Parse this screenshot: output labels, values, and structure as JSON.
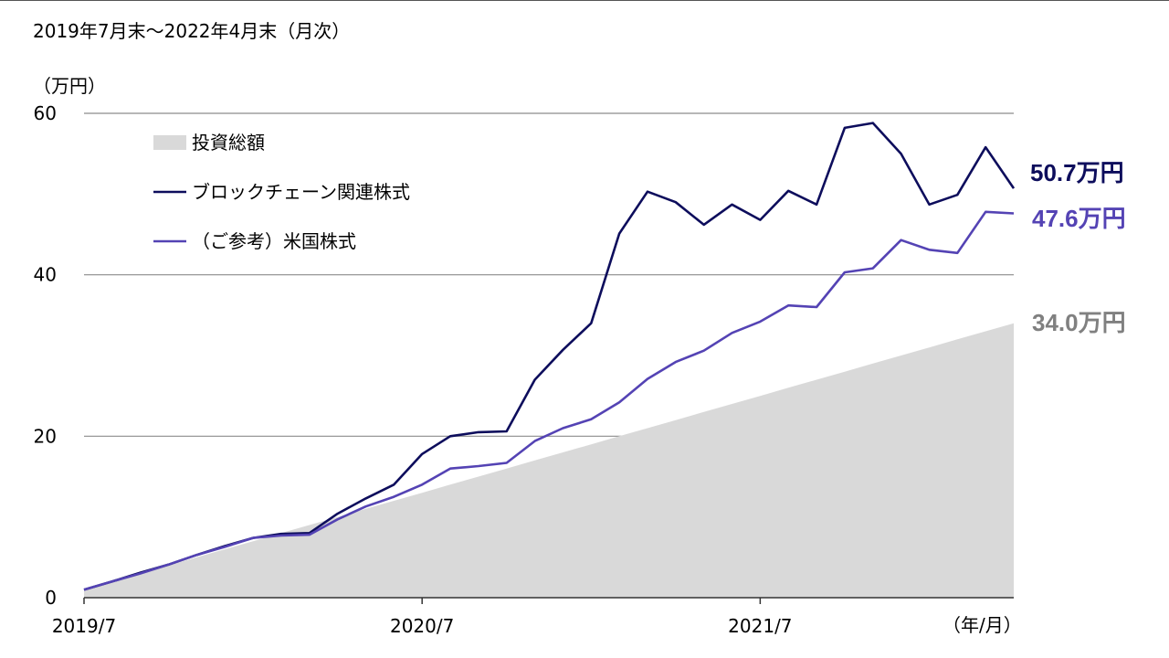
{
  "subtitle": "2019年7月末～2022年4月末（月次）",
  "chart_data": {
    "type": "line",
    "ylabel": "（万円）",
    "xlabel": "（年/月）",
    "ylim": [
      0,
      60
    ],
    "yticks": [
      0,
      20,
      40,
      60
    ],
    "xticks": [
      "2019/7",
      "2020/7",
      "2021/7"
    ],
    "x": [
      "2019/7",
      "2019/8",
      "2019/9",
      "2019/10",
      "2019/11",
      "2019/12",
      "2020/1",
      "2020/2",
      "2020/3",
      "2020/4",
      "2020/5",
      "2020/6",
      "2020/7",
      "2020/8",
      "2020/9",
      "2020/10",
      "2020/11",
      "2020/12",
      "2021/1",
      "2021/2",
      "2021/3",
      "2021/4",
      "2021/5",
      "2021/6",
      "2021/7",
      "2021/8",
      "2021/9",
      "2021/10",
      "2021/11",
      "2021/12",
      "2022/1",
      "2022/2",
      "2022/3",
      "2022/4"
    ],
    "grid": true,
    "legend_position": "top-left",
    "series": [
      {
        "name": "投資総額",
        "kind": "area",
        "color": "#d9d9d9",
        "values": [
          1.0,
          2.0,
          3.0,
          4.0,
          5.0,
          6.0,
          7.0,
          8.0,
          9.0,
          10.0,
          11.0,
          12.0,
          13.0,
          14.0,
          15.0,
          16.0,
          17.0,
          18.0,
          19.0,
          20.0,
          21.0,
          22.0,
          23.0,
          24.0,
          25.0,
          26.0,
          27.0,
          28.0,
          29.0,
          30.0,
          31.0,
          32.0,
          33.0,
          34.0
        ],
        "end_label": "34.0万円"
      },
      {
        "name": "ブロックチェーン関連株式",
        "kind": "line",
        "color": "#0d0d5c",
        "values": [
          1.0,
          2.0,
          3.1,
          4.1,
          5.3,
          6.4,
          7.4,
          7.9,
          8.0,
          10.4,
          12.3,
          14.0,
          17.8,
          20.0,
          20.5,
          20.6,
          27.0,
          30.7,
          34.0,
          45.1,
          50.3,
          49.0,
          46.2,
          48.7,
          46.8,
          50.4,
          48.7,
          58.2,
          58.8,
          55.0,
          48.7,
          49.9,
          55.8,
          50.7
        ],
        "end_label": "50.7万円"
      },
      {
        "name": "（ご参考）米国株式",
        "kind": "line",
        "color": "#5443b4",
        "values": [
          1.0,
          2.0,
          3.0,
          4.1,
          5.3,
          6.3,
          7.4,
          7.7,
          7.8,
          9.7,
          11.3,
          12.5,
          14.0,
          16.0,
          16.3,
          16.7,
          19.4,
          21.0,
          22.1,
          24.2,
          27.1,
          29.2,
          30.6,
          32.8,
          34.2,
          36.2,
          36.0,
          40.3,
          40.8,
          44.3,
          43.1,
          42.7,
          47.8,
          47.6
        ],
        "end_label": "47.6万円"
      }
    ]
  }
}
